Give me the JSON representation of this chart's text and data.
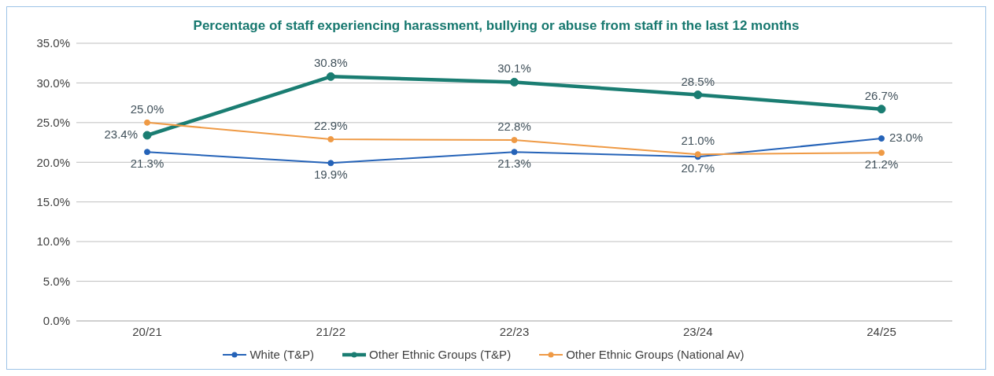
{
  "chart_data": {
    "type": "line",
    "title": "Percentage of staff experiencing harassment, bullying or abuse from staff in the last 12 months",
    "categories": [
      "20/21",
      "21/22",
      "22/23",
      "23/24",
      "24/25"
    ],
    "series": [
      {
        "name": "White (T&P)",
        "color": "#2563b8",
        "values": [
          21.3,
          19.9,
          21.3,
          20.7,
          23.0
        ],
        "value_labels": [
          "21.3%",
          "19.9%",
          "21.3%",
          "20.7%",
          "23.0%"
        ]
      },
      {
        "name": "Other Ethnic Groups (T&P)",
        "color": "#1a7d72",
        "values": [
          23.4,
          30.8,
          30.1,
          28.5,
          26.7
        ],
        "value_labels": [
          "23.4%",
          "30.8%",
          "30.1%",
          "28.5%",
          "26.7%"
        ]
      },
      {
        "name": "Other Ethnic Groups (National Av)",
        "color": "#ef9a45",
        "values": [
          25.0,
          22.9,
          22.8,
          21.0,
          21.2
        ],
        "value_labels": [
          "25.0%",
          "22.9%",
          "22.8%",
          "21.0%",
          "21.2%"
        ]
      }
    ],
    "ylim": [
      0,
      35
    ],
    "yticks": [
      {
        "value": 0,
        "label": "0.0%"
      },
      {
        "value": 5,
        "label": "5.0%"
      },
      {
        "value": 10,
        "label": "10.0%"
      },
      {
        "value": 15,
        "label": "15.0%"
      },
      {
        "value": 20,
        "label": "20.0%"
      },
      {
        "value": 25,
        "label": "25.0%"
      },
      {
        "value": 30,
        "label": "30.0%"
      },
      {
        "value": 35,
        "label": "35.0%"
      }
    ],
    "grid": "y",
    "legend": "bottom",
    "marker": "circle",
    "line_style": "solid"
  }
}
